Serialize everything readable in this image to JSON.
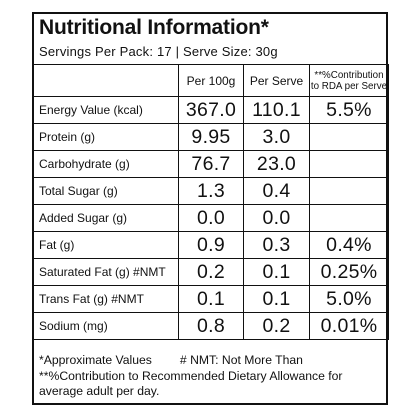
{
  "label": {
    "title": "Nutritional Information*",
    "subtitle": "Servings Per Pack: 17 | Serve Size: 30g",
    "headers": {
      "per100": "Per 100g",
      "perServe": "Per Serve",
      "rda_line1": "**%Contribution",
      "rda_line2": "to RDA per Serve"
    },
    "rows": [
      {
        "name": "Energy Value (kcal)",
        "per100": "367.0",
        "perServe": "110.1",
        "rda": "5.5%"
      },
      {
        "name": "Protein (g)",
        "per100": "9.95",
        "perServe": "3.0",
        "rda": ""
      },
      {
        "name": "Carbohydrate (g)",
        "per100": "76.7",
        "perServe": "23.0",
        "rda": ""
      },
      {
        "name": "Total Sugar (g)",
        "per100": "1.3",
        "perServe": "0.4",
        "rda": ""
      },
      {
        "name": "Added Sugar (g)",
        "per100": "0.0",
        "perServe": "0.0",
        "rda": ""
      },
      {
        "name": "Fat (g)",
        "per100": "0.9",
        "perServe": "0.3",
        "rda": "0.4%"
      },
      {
        "name": "Saturated Fat (g) #NMT",
        "per100": "0.2",
        "perServe": "0.1",
        "rda": "0.25%"
      },
      {
        "name": "Trans Fat (g) #NMT",
        "per100": "0.1",
        "perServe": "0.1",
        "rda": "5.0%"
      },
      {
        "name": "Sodium (mg)",
        "per100": "0.8",
        "perServe": "0.2",
        "rda": "0.01%"
      }
    ],
    "footnotes": {
      "approx": "*Approximate Values",
      "nmt": "# NMT: Not More Than",
      "rda": "**%Contribution to Recommended Dietary Allowance for average adult per day."
    }
  }
}
